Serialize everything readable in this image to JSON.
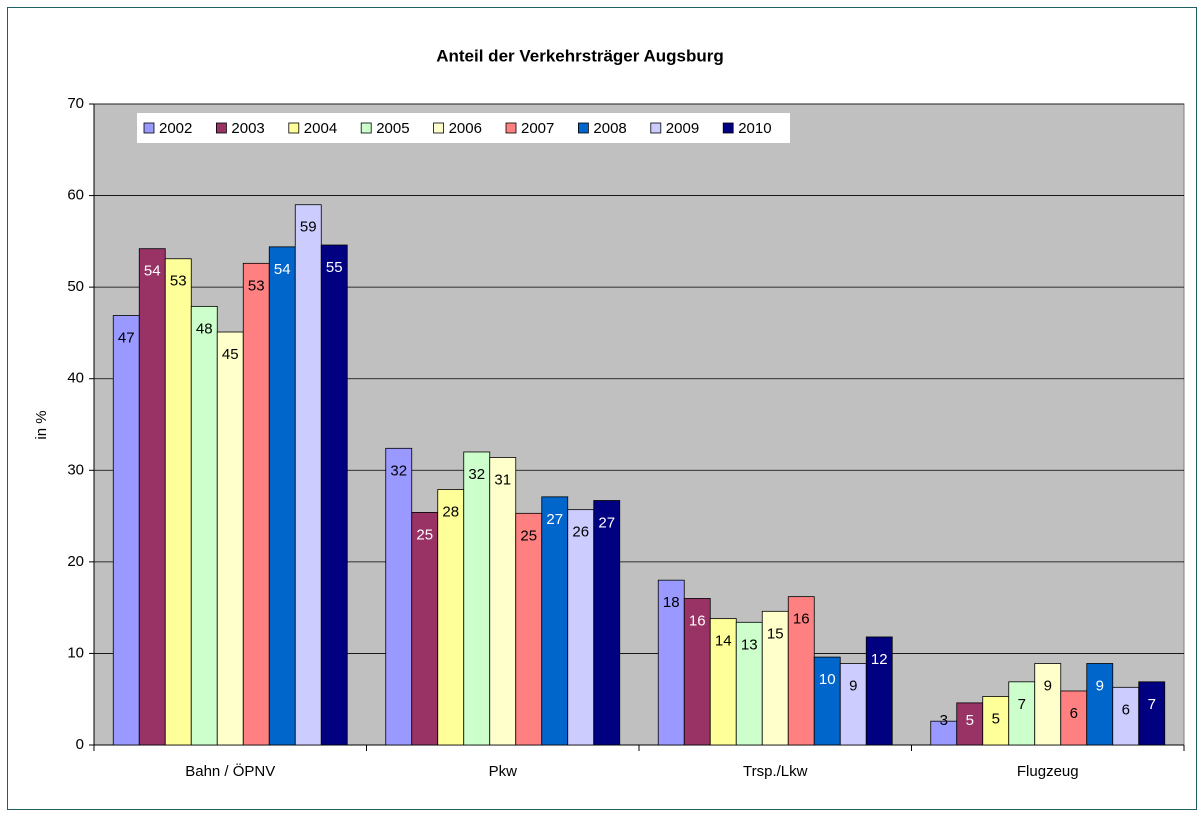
{
  "chart_data": {
    "type": "bar",
    "title": "Anteil der Verkehrsträger Augsburg",
    "y_label": "in %",
    "categories": [
      "Bahn / ÖPNV",
      "Pkw",
      "Trsp./Lkw",
      "Flugzeug"
    ],
    "series": [
      {
        "name": "2002",
        "color": "#9999ff",
        "values": [
          46.9,
          32.4,
          18.0,
          2.6
        ],
        "value_labels": [
          "47",
          "32",
          "18",
          "3"
        ]
      },
      {
        "name": "2003",
        "color": "#993366",
        "values": [
          54.2,
          25.4,
          16.0,
          4.6
        ],
        "value_labels": [
          "54",
          "25",
          "16",
          "5"
        ]
      },
      {
        "name": "2004",
        "color": "#ffff99",
        "values": [
          53.1,
          27.9,
          13.8,
          5.3
        ],
        "value_labels": [
          "53",
          "28",
          "14",
          "5"
        ]
      },
      {
        "name": "2005",
        "color": "#ccffcc",
        "values": [
          47.9,
          32.0,
          13.4,
          6.9
        ],
        "value_labels": [
          "48",
          "32",
          "13",
          "7"
        ]
      },
      {
        "name": "2006",
        "color": "#ffffcc",
        "values": [
          45.1,
          31.4,
          14.6,
          8.9
        ],
        "value_labels": [
          "45",
          "31",
          "15",
          "9"
        ]
      },
      {
        "name": "2007",
        "color": "#ff8080",
        "values": [
          52.6,
          25.3,
          16.2,
          5.9
        ],
        "value_labels": [
          "53",
          "25",
          "16",
          "6"
        ]
      },
      {
        "name": "2008",
        "color": "#0066cc",
        "values": [
          54.4,
          27.1,
          9.6,
          8.9
        ],
        "value_labels": [
          "54",
          "27",
          "10",
          "9"
        ]
      },
      {
        "name": "2009",
        "color": "#ccccff",
        "values": [
          59.0,
          25.7,
          8.9,
          6.3
        ],
        "value_labels": [
          "59",
          "26",
          "9",
          "6"
        ]
      },
      {
        "name": "2010",
        "color": "#000080",
        "values": [
          54.6,
          26.7,
          11.8,
          6.9
        ],
        "value_labels": [
          "55",
          "27",
          "12",
          "7"
        ]
      }
    ],
    "ylim": [
      0,
      70
    ],
    "yticks": [
      0,
      10,
      20,
      30,
      40,
      50,
      60,
      70
    ],
    "grid": true,
    "legend": "upper left"
  }
}
